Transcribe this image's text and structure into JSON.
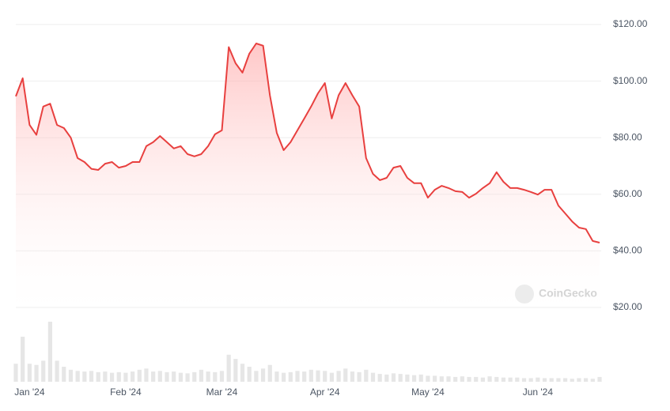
{
  "chart_data": {
    "type": "area",
    "watermark": "CoinGecko",
    "color": "#e8403f",
    "volume_color": "#e6e6e6",
    "grid": true,
    "categories": [
      null,
      null,
      "Jan '24",
      null,
      null,
      null,
      null,
      null,
      null,
      null,
      null,
      null,
      null,
      null,
      null,
      null,
      "Feb '24",
      null,
      null,
      null,
      null,
      null,
      null,
      null,
      null,
      null,
      null,
      null,
      null,
      null,
      "Mar '24",
      null,
      null,
      null,
      null,
      null,
      null,
      null,
      null,
      null,
      null,
      null,
      null,
      null,
      null,
      "Apr '24",
      null,
      null,
      null,
      null,
      null,
      null,
      null,
      null,
      null,
      null,
      null,
      null,
      null,
      null,
      "May '24",
      null,
      null,
      null,
      null,
      null,
      null,
      null,
      null,
      null,
      null,
      null,
      null,
      null,
      null,
      null,
      "Jun '24",
      null,
      null,
      null,
      null,
      null,
      null,
      null,
      null,
      null
    ],
    "values": [
      94.6,
      101,
      84.5,
      81,
      91,
      92,
      84.5,
      83.4,
      80,
      72.8,
      71.4,
      69,
      68.6,
      70.8,
      71.4,
      69.4,
      70,
      71.4,
      71.4,
      77,
      78.4,
      80.6,
      78.4,
      76.2,
      77,
      74.2,
      73.4,
      74.2,
      77,
      81.2,
      82.6,
      112,
      106.3,
      103,
      109.7,
      113.3,
      112.5,
      95,
      81.7,
      75.6,
      78.4,
      82.6,
      86.8,
      91,
      95.7,
      99.3,
      86.8,
      95,
      99.3,
      95,
      91,
      72.8,
      67.2,
      65,
      65.8,
      69.4,
      70,
      65.8,
      63.9,
      63.9,
      58.8,
      61.6,
      63,
      62.2,
      61.1,
      60.8,
      58.8,
      60.2,
      62.2,
      63.9,
      67.8,
      64.4,
      62.2,
      62.2,
      61.6,
      60.8,
      59.9,
      61.6,
      61.6,
      56,
      53.2,
      50.4,
      48.2,
      47.7,
      43.5,
      42.9
    ],
    "volume": [
      30,
      75,
      30,
      28,
      35,
      100,
      35,
      25,
      20,
      18,
      17,
      18,
      16,
      17,
      15,
      16,
      15,
      17,
      20,
      22,
      17,
      18,
      16,
      17,
      15,
      14,
      16,
      20,
      17,
      16,
      18,
      45,
      38,
      30,
      25,
      18,
      22,
      28,
      17,
      15,
      16,
      18,
      17,
      20,
      19,
      18,
      15,
      18,
      22,
      17,
      16,
      20,
      15,
      13,
      12,
      14,
      13,
      12,
      11,
      12,
      10,
      10,
      9,
      9,
      8,
      9,
      8,
      8,
      7,
      9,
      8,
      7,
      7,
      7,
      6,
      6,
      7,
      6,
      6,
      6,
      6,
      5,
      6,
      6,
      5,
      8
    ],
    "ylim": [
      20,
      120
    ],
    "yticks": [
      {
        "value": 20,
        "label": "$20.00"
      },
      {
        "value": 40,
        "label": "$40.00"
      },
      {
        "value": 60,
        "label": "$60.00"
      },
      {
        "value": 80,
        "label": "$80.00"
      },
      {
        "value": 100,
        "label": "$100.00"
      },
      {
        "value": 120,
        "label": "$120.00"
      }
    ]
  }
}
